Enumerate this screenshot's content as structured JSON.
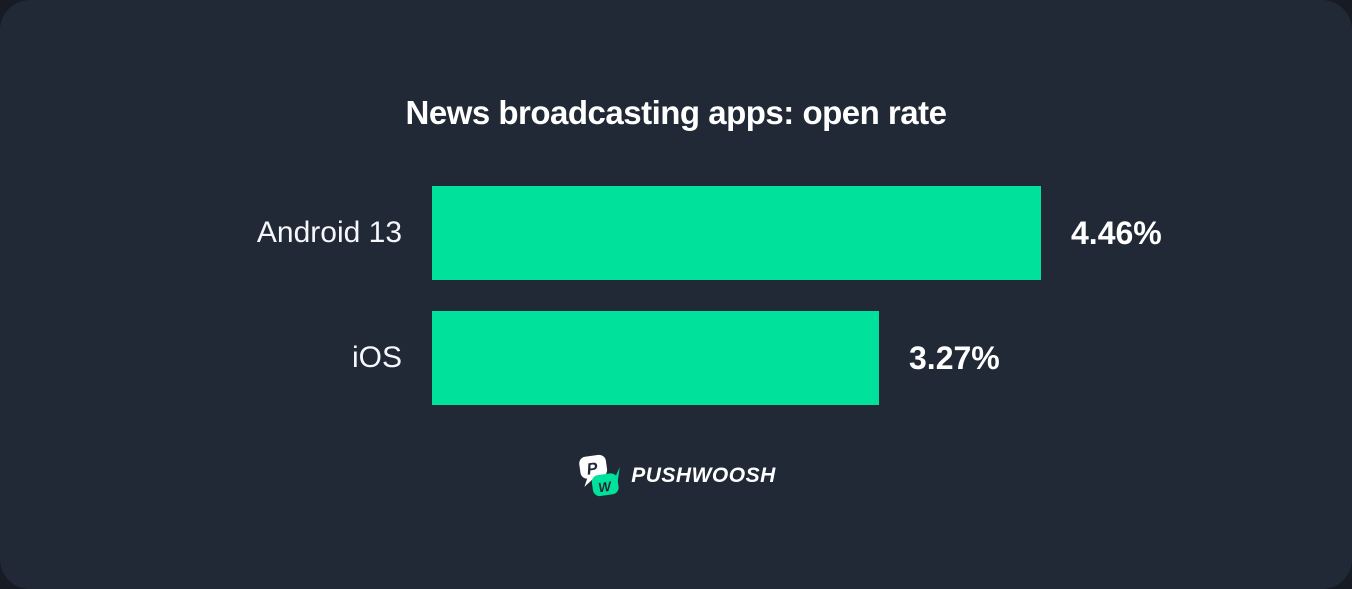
{
  "colors": {
    "card_background": "#222936",
    "outer_background": "#161b24",
    "bar_green": "#00e19c",
    "text_white": "#ffffff"
  },
  "chart_data": {
    "type": "bar",
    "orientation": "horizontal",
    "title": "News broadcasting apps: open rate",
    "categories": [
      "Android 13",
      "iOS"
    ],
    "values": [
      4.46,
      3.27
    ],
    "value_labels": [
      "4.46%",
      "3.27%"
    ],
    "unit": "%",
    "xlim": [
      0,
      4.46
    ],
    "bar_color": "#00e19c",
    "grid": false,
    "legend": false
  },
  "footer": {
    "logo_text": "PUSHWOOSH",
    "logo_icon": "pushwoosh-speech-bubbles-icon",
    "logo_letter_p": "P",
    "logo_letter_w": "W",
    "logo_bubble_p_color": "#ffffff",
    "logo_bubble_w_color": "#00e19c"
  }
}
